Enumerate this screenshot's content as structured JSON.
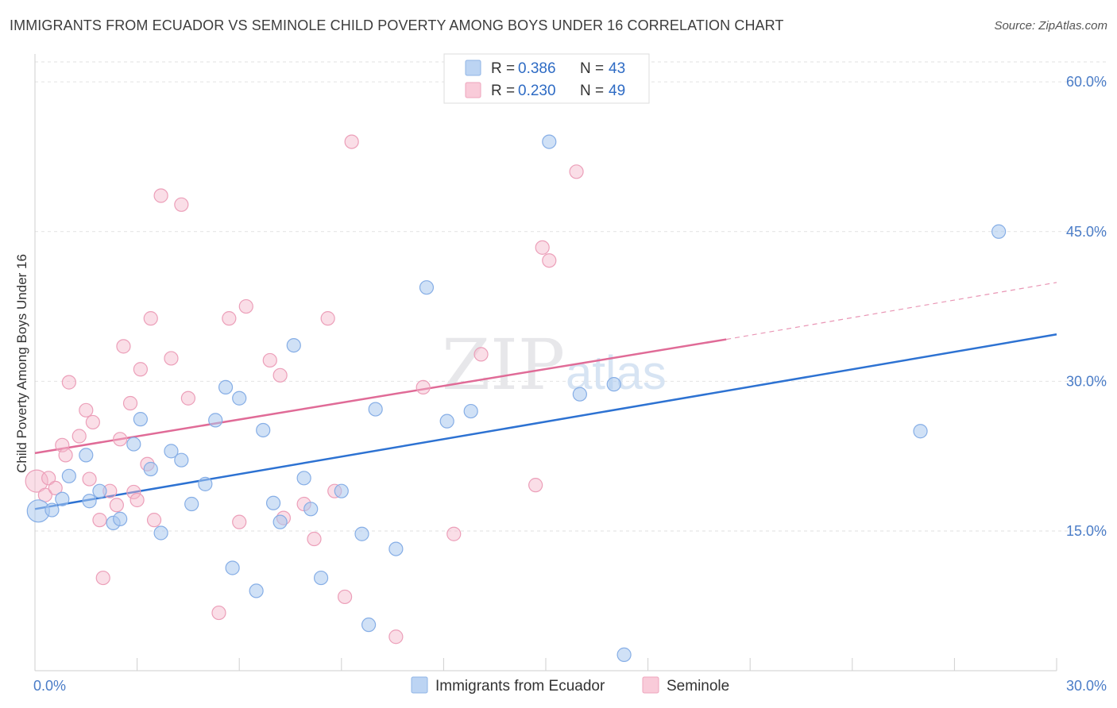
{
  "header": {
    "title": "IMMIGRANTS FROM ECUADOR VS SEMINOLE CHILD POVERTY AMONG BOYS UNDER 16 CORRELATION CHART",
    "source": "Source: ZipAtlas.com"
  },
  "watermark": {
    "zip": "ZIP",
    "atlas": "atlas"
  },
  "chart_data": {
    "type": "scatter",
    "title": "IMMIGRANTS FROM ECUADOR VS SEMINOLE CHILD POVERTY AMONG BOYS UNDER 16 CORRELATION CHART",
    "xlabel": "",
    "ylabel": "Child Poverty Among Boys Under 16",
    "xlim": [
      0,
      30
    ],
    "ylim": [
      1,
      62
    ],
    "x_tick_labels": [
      "0.0%",
      "30.0%"
    ],
    "y_ticks": [
      15,
      30,
      45,
      60
    ],
    "y_tick_labels": [
      "15.0%",
      "30.0%",
      "45.0%",
      "60.0%"
    ],
    "grid": true,
    "legend_position": "top-center",
    "legend": [
      {
        "r_label": "R =",
        "r_value": "0.386",
        "n_label": "N =",
        "n_value": "43"
      },
      {
        "r_label": "R =",
        "r_value": "0.230",
        "n_label": "N =",
        "n_value": "49"
      }
    ],
    "series": [
      {
        "name": "Immigrants from Ecuador",
        "color": "#a9c8ef",
        "line_color": "#2d72d2",
        "trend": {
          "x0": 0,
          "y0": 17.2,
          "x1": 30,
          "y1": 34.7
        },
        "points": [
          [
            0.1,
            17.0
          ],
          [
            0.5,
            17.1
          ],
          [
            0.8,
            18.2
          ],
          [
            1.0,
            20.5
          ],
          [
            1.5,
            22.6
          ],
          [
            1.6,
            18.0
          ],
          [
            1.9,
            19.0
          ],
          [
            2.3,
            15.8
          ],
          [
            2.5,
            16.2
          ],
          [
            2.9,
            23.7
          ],
          [
            3.1,
            26.2
          ],
          [
            3.4,
            21.2
          ],
          [
            3.7,
            14.8
          ],
          [
            4.0,
            23.0
          ],
          [
            4.3,
            22.1
          ],
          [
            4.6,
            17.7
          ],
          [
            5.0,
            19.7
          ],
          [
            5.3,
            26.1
          ],
          [
            5.6,
            29.4
          ],
          [
            5.8,
            11.3
          ],
          [
            6.0,
            28.3
          ],
          [
            6.5,
            9.0
          ],
          [
            6.7,
            25.1
          ],
          [
            7.0,
            17.8
          ],
          [
            7.2,
            15.9
          ],
          [
            7.6,
            33.6
          ],
          [
            7.9,
            20.3
          ],
          [
            8.1,
            17.2
          ],
          [
            8.4,
            10.3
          ],
          [
            9.0,
            19.0
          ],
          [
            9.6,
            14.7
          ],
          [
            9.8,
            5.6
          ],
          [
            10.0,
            27.2
          ],
          [
            10.6,
            13.2
          ],
          [
            11.5,
            39.4
          ],
          [
            12.1,
            26.0
          ],
          [
            12.8,
            27.0
          ],
          [
            15.1,
            54.0
          ],
          [
            16.0,
            28.7
          ],
          [
            17.0,
            29.7
          ],
          [
            17.3,
            2.6
          ],
          [
            26.0,
            25.0
          ],
          [
            28.3,
            45.0
          ]
        ]
      },
      {
        "name": "Seminole",
        "color": "#f5b6c9",
        "line_color": "#e06b97",
        "trend": {
          "x0": 0,
          "y0": 22.8,
          "x1": 20.3,
          "y1": 34.2
        },
        "trend_ext": {
          "x0": 20.3,
          "y0": 34.2,
          "x1": 30,
          "y1": 39.9
        },
        "points": [
          [
            0.05,
            20.0
          ],
          [
            0.3,
            18.6
          ],
          [
            0.4,
            20.3
          ],
          [
            0.6,
            19.3
          ],
          [
            0.8,
            23.6
          ],
          [
            0.9,
            22.6
          ],
          [
            1.0,
            29.9
          ],
          [
            1.3,
            24.5
          ],
          [
            1.5,
            27.1
          ],
          [
            1.6,
            20.2
          ],
          [
            1.7,
            25.9
          ],
          [
            1.9,
            16.1
          ],
          [
            2.0,
            10.3
          ],
          [
            2.2,
            19.0
          ],
          [
            2.4,
            17.6
          ],
          [
            2.5,
            24.2
          ],
          [
            2.6,
            33.5
          ],
          [
            2.8,
            27.8
          ],
          [
            2.9,
            18.9
          ],
          [
            3.0,
            18.1
          ],
          [
            3.1,
            31.2
          ],
          [
            3.3,
            21.7
          ],
          [
            3.4,
            36.3
          ],
          [
            3.5,
            16.1
          ],
          [
            3.7,
            48.6
          ],
          [
            4.0,
            32.3
          ],
          [
            4.3,
            47.7
          ],
          [
            4.5,
            28.3
          ],
          [
            5.4,
            6.8
          ],
          [
            5.7,
            36.3
          ],
          [
            6.0,
            15.9
          ],
          [
            6.2,
            37.5
          ],
          [
            6.9,
            32.1
          ],
          [
            7.2,
            30.6
          ],
          [
            7.3,
            16.3
          ],
          [
            7.9,
            17.7
          ],
          [
            8.2,
            14.2
          ],
          [
            8.6,
            36.3
          ],
          [
            8.8,
            19.0
          ],
          [
            9.1,
            8.4
          ],
          [
            9.3,
            54.0
          ],
          [
            10.6,
            4.4
          ],
          [
            11.4,
            29.4
          ],
          [
            12.3,
            14.7
          ],
          [
            13.1,
            32.7
          ],
          [
            14.7,
            19.6
          ],
          [
            14.9,
            43.4
          ],
          [
            15.1,
            42.1
          ],
          [
            15.9,
            51.0
          ]
        ]
      }
    ]
  }
}
